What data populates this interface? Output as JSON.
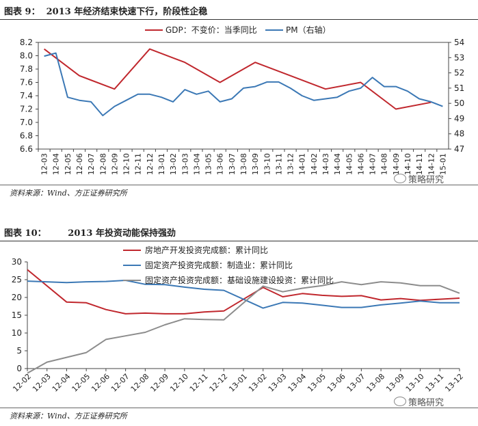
{
  "figure1": {
    "title": "图表 9：  2013 年经济结束快速下行，阶段性企稳",
    "source": "资料来源：Wind、方正证券研究所",
    "watermark": "策略研究"
  },
  "figure2": {
    "title": "图表 10：       2013 年投资动能保持强劲",
    "source": "资料来源：Wind、方正证券研究所",
    "watermark": "策略研究"
  },
  "chart_data": [
    {
      "type": "line",
      "title": "2013 年经济结束快速下行，阶段性企稳",
      "categories": [
        "12-03",
        "12-04",
        "12-05",
        "12-06",
        "12-07",
        "12-08",
        "12-09",
        "12-10",
        "12-11",
        "12-12",
        "13-01",
        "13-02",
        "13-03",
        "13-04",
        "13-05",
        "13-06",
        "13-07",
        "13-08",
        "13-09",
        "13-10",
        "13-11",
        "13-12",
        "14-01",
        "14-02",
        "14-03",
        "14-04",
        "14-05",
        "14-06",
        "14-07",
        "14-08",
        "14-09",
        "14-10",
        "14-11",
        "14-12",
        "15-01"
      ],
      "ylim": [
        6.6,
        8.2
      ],
      "yticks": [
        "6.6",
        "6.8",
        "7.0",
        "7.2",
        "7.4",
        "7.6",
        "7.8",
        "8.0",
        "8.2"
      ],
      "y2lim": [
        47,
        54
      ],
      "y2ticks": [
        "47",
        "48",
        "49",
        "50",
        "51",
        "52",
        "53",
        "54"
      ],
      "series": [
        {
          "name": "GDP：不变价：当季同比",
          "axis": "left",
          "color": "#c0272d",
          "values": [
            8.1,
            null,
            null,
            7.7,
            null,
            null,
            7.5,
            null,
            null,
            8.1,
            null,
            null,
            7.9,
            null,
            null,
            7.6,
            null,
            null,
            7.9,
            null,
            null,
            7.7,
            null,
            null,
            7.5,
            null,
            null,
            7.6,
            null,
            null,
            7.2,
            null,
            null,
            7.3,
            null
          ]
        },
        {
          "name": "PM（右轴）",
          "axis": "right",
          "color": "#3b78b5",
          "values": [
            53.1,
            53.3,
            50.4,
            50.2,
            50.1,
            49.2,
            49.8,
            50.2,
            50.6,
            50.6,
            50.4,
            50.1,
            50.9,
            50.6,
            50.8,
            50.1,
            50.3,
            51.0,
            51.1,
            51.4,
            51.4,
            51.0,
            50.5,
            50.2,
            50.3,
            50.4,
            50.8,
            51.0,
            51.7,
            51.1,
            51.1,
            50.8,
            50.3,
            50.1,
            49.8
          ]
        }
      ]
    },
    {
      "type": "line",
      "title": "2013 年投资动能保持强劲",
      "categories": [
        "12-02",
        "12-03",
        "12-04",
        "12-05",
        "12-06",
        "12-07",
        "12-08",
        "12-09",
        "12-10",
        "12-11",
        "12-12",
        "13-01",
        "13-02",
        "13-03",
        "13-04",
        "13-05",
        "13-06",
        "13-07",
        "13-08",
        "13-09",
        "13-10",
        "13-11",
        "13-12"
      ],
      "ylim": [
        0,
        30
      ],
      "yticks": [
        "0",
        "5",
        "10",
        "15",
        "20",
        "25",
        "30"
      ],
      "series": [
        {
          "name": "房地产开发投资完成额：累计同比",
          "color": "#c0272d",
          "values": [
            27.8,
            null,
            18.7,
            18.5,
            16.6,
            15.4,
            15.6,
            15.4,
            15.4,
            15.9,
            16.2,
            null,
            22.8,
            20.2,
            21.1,
            20.6,
            20.3,
            20.5,
            19.3,
            19.7,
            19.2,
            19.5,
            19.8
          ]
        },
        {
          "name": "固定资产投资完成额：制造业：累计同比",
          "color": "#3b78b5",
          "values": [
            24.6,
            null,
            24.2,
            24.4,
            24.5,
            24.8,
            23.7,
            23.6,
            22.9,
            22.3,
            22.0,
            null,
            17.0,
            18.6,
            18.4,
            17.8,
            17.2,
            17.2,
            17.9,
            18.4,
            19.0,
            18.5,
            18.5
          ]
        },
        {
          "name": "固定资产投资完成额：基础设施建设投资：累计同比",
          "color": "#8c8c8c",
          "values": [
            -1.3,
            1.8,
            null,
            4.5,
            8.2,
            9.2,
            10.2,
            12.3,
            14.0,
            13.8,
            13.7,
            null,
            23.2,
            21.6,
            22.6,
            23.3,
            24.4,
            23.6,
            24.4,
            24.1,
            23.3,
            23.3,
            21.2
          ]
        }
      ]
    }
  ]
}
